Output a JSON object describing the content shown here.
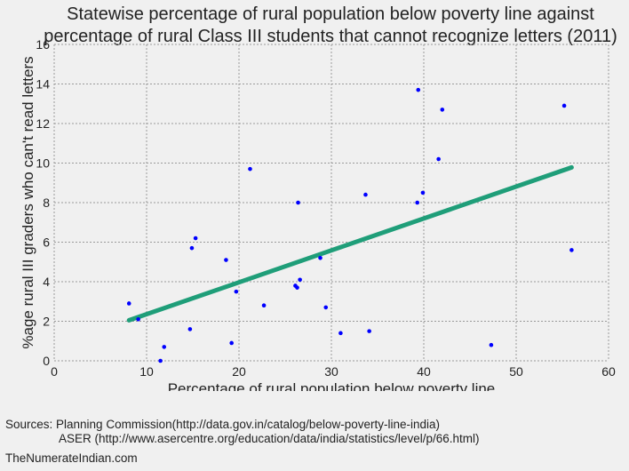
{
  "chart_data": {
    "type": "scatter",
    "title_lines": [
      "Statewise percentage of rural population below poverty line against",
      "percentage of rural Class III students that cannot recognize letters (2011)"
    ],
    "xlabel": "Percentage of rural population below poverty line",
    "ylabel": "%age rural III graders who can't read letters",
    "xlim": [
      0,
      60
    ],
    "ylim": [
      0,
      16
    ],
    "xticks": [
      0,
      10,
      20,
      30,
      40,
      50,
      60
    ],
    "yticks": [
      0,
      2,
      4,
      6,
      8,
      10,
      12,
      14,
      16
    ],
    "grid": true,
    "points": [
      {
        "x": 8.1,
        "y": 2.9
      },
      {
        "x": 9.1,
        "y": 2.1
      },
      {
        "x": 11.5,
        "y": 0.0
      },
      {
        "x": 11.9,
        "y": 0.7
      },
      {
        "x": 14.7,
        "y": 1.6
      },
      {
        "x": 14.9,
        "y": 5.7
      },
      {
        "x": 15.3,
        "y": 6.2
      },
      {
        "x": 18.6,
        "y": 5.1
      },
      {
        "x": 19.2,
        "y": 0.9
      },
      {
        "x": 19.7,
        "y": 3.5
      },
      {
        "x": 21.2,
        "y": 9.7
      },
      {
        "x": 22.7,
        "y": 2.8
      },
      {
        "x": 26.1,
        "y": 3.8
      },
      {
        "x": 26.3,
        "y": 3.7
      },
      {
        "x": 26.4,
        "y": 8.0
      },
      {
        "x": 26.6,
        "y": 4.1
      },
      {
        "x": 28.8,
        "y": 5.2
      },
      {
        "x": 29.4,
        "y": 2.7
      },
      {
        "x": 31.0,
        "y": 1.4
      },
      {
        "x": 33.7,
        "y": 8.4
      },
      {
        "x": 34.1,
        "y": 1.5
      },
      {
        "x": 39.3,
        "y": 8.0
      },
      {
        "x": 39.4,
        "y": 13.7
      },
      {
        "x": 39.9,
        "y": 8.5
      },
      {
        "x": 41.6,
        "y": 10.2
      },
      {
        "x": 42.0,
        "y": 12.7
      },
      {
        "x": 47.3,
        "y": 0.8
      },
      {
        "x": 55.2,
        "y": 12.9
      },
      {
        "x": 56.0,
        "y": 5.6
      }
    ],
    "trendline": {
      "x": [
        8.1,
        56.0
      ],
      "y": [
        2.05,
        9.78
      ]
    },
    "colors": {
      "points": "#0000ff",
      "trendline": "#1f9e79",
      "grid": "#9a9a9a"
    }
  },
  "footer": {
    "sources_line1": "Sources: Planning Commission(http://data.gov.in/catalog/below-poverty-line-india)",
    "sources_line2": "ASER (http://www.asercentre.org/education/data/india/statistics/level/p/66.html)",
    "credit": "TheNumerateIndian.com"
  }
}
